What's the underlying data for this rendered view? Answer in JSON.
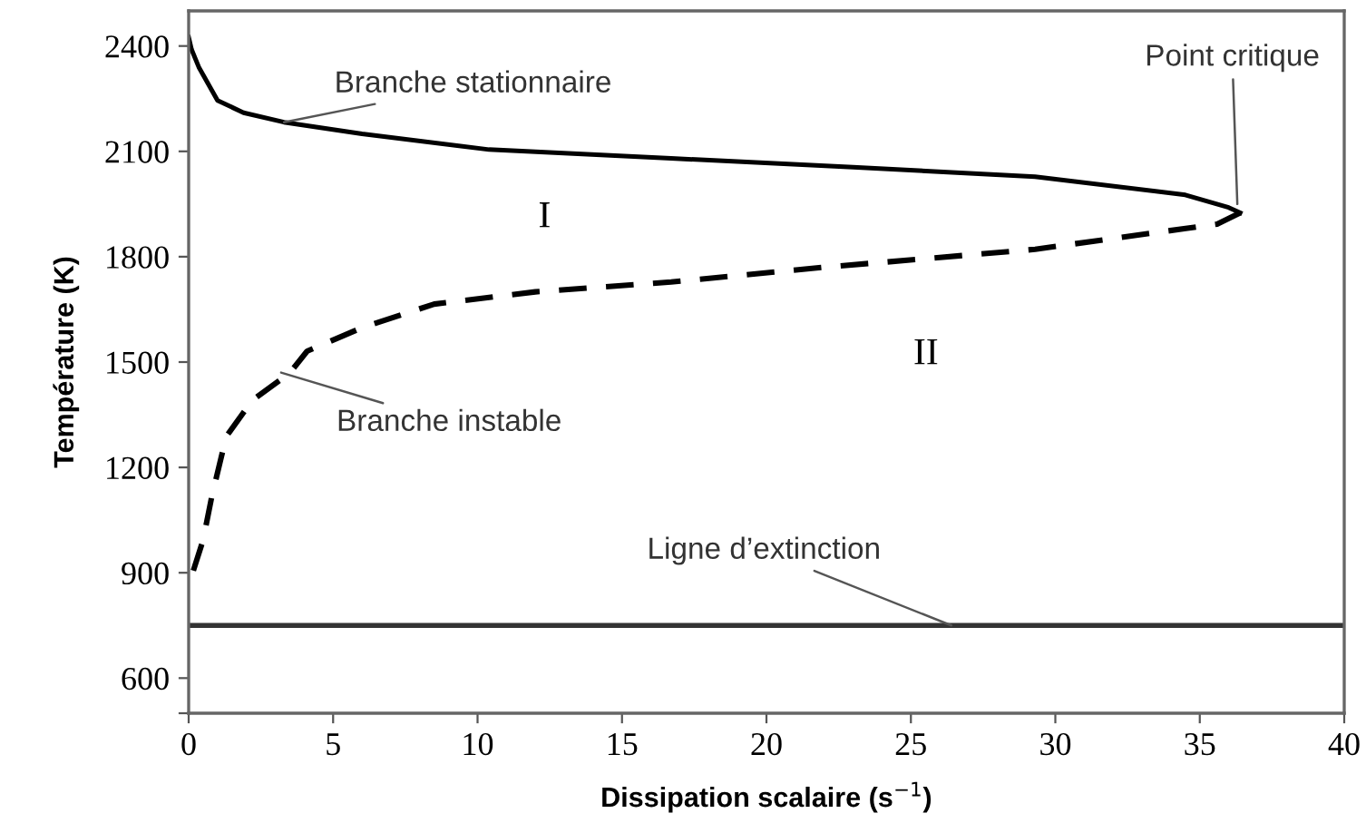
{
  "chart_data": {
    "type": "line",
    "xlabel": "Dissipation scalaire (s$^{−1}$)",
    "ylabel": "Température (K)",
    "xlim": [
      0,
      40
    ],
    "xticks": [
      0,
      5,
      10,
      15,
      20,
      25,
      30,
      35,
      40
    ],
    "ylim": [
      500,
      2500
    ],
    "yticks": [
      {
        "value": 500,
        "label": null
      },
      600,
      900,
      1200,
      1500,
      1800,
      2100,
      2400
    ],
    "grid": false,
    "legend": false,
    "marker": "none",
    "series": [
      {
        "color": "#000000",
        "line_style": "solid",
        "x": [
          0,
          0.1,
          0.35,
          1,
          1.9,
          3.3,
          6,
          10.4,
          16.7,
          23,
          29.3,
          34.5,
          36,
          36.4
        ],
        "values": [
          2425,
          2390,
          2340,
          2245,
          2210,
          2183,
          2150,
          2105,
          2080,
          2055,
          2028,
          1976,
          1940,
          1925
        ]
      },
      {
        "color": "#000000",
        "line_style": "dashed",
        "x": [
          36.4,
          35.6,
          29.3,
          22,
          16.7,
          12,
          8.5,
          6,
          4.1,
          3.5,
          2.2,
          1.3,
          0.8,
          0.5,
          0.1,
          0
        ],
        "values": [
          1925,
          1893,
          1821,
          1770,
          1728,
          1700,
          1665,
          1598,
          1531,
          1469,
          1391,
          1288,
          1117,
          993,
          890,
          860
        ]
      }
    ],
    "ref_lines": [
      {
        "axis": "y",
        "value": 750,
        "label": "Ligne d’extinction",
        "color": "#333333",
        "line_style": "solid"
      }
    ],
    "annotations": [
      {
        "text": "Branche stationnaire",
        "x": 3.3,
        "y": 2183
      },
      {
        "text": "Point critique",
        "x": 36.3,
        "y": 1950
      },
      {
        "text": "Branche instable",
        "x": 3.2,
        "y": 1470
      },
      "I",
      "II"
    ]
  }
}
